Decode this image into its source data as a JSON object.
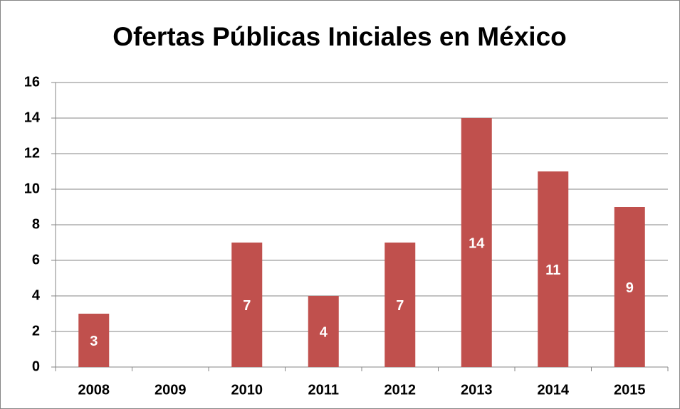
{
  "chart_data": {
    "type": "bar",
    "title": "Ofertas Públicas Iniciales en México",
    "categories": [
      "2008",
      "2009",
      "2010",
      "2011",
      "2012",
      "2013",
      "2014",
      "2015"
    ],
    "values": [
      3,
      0,
      7,
      4,
      7,
      14,
      11,
      9
    ],
    "color": "#c0504d",
    "ylim": [
      0,
      16
    ],
    "yticks": [
      0,
      2,
      4,
      6,
      8,
      10,
      12,
      14,
      16
    ],
    "grid": true,
    "data_labels": true
  }
}
